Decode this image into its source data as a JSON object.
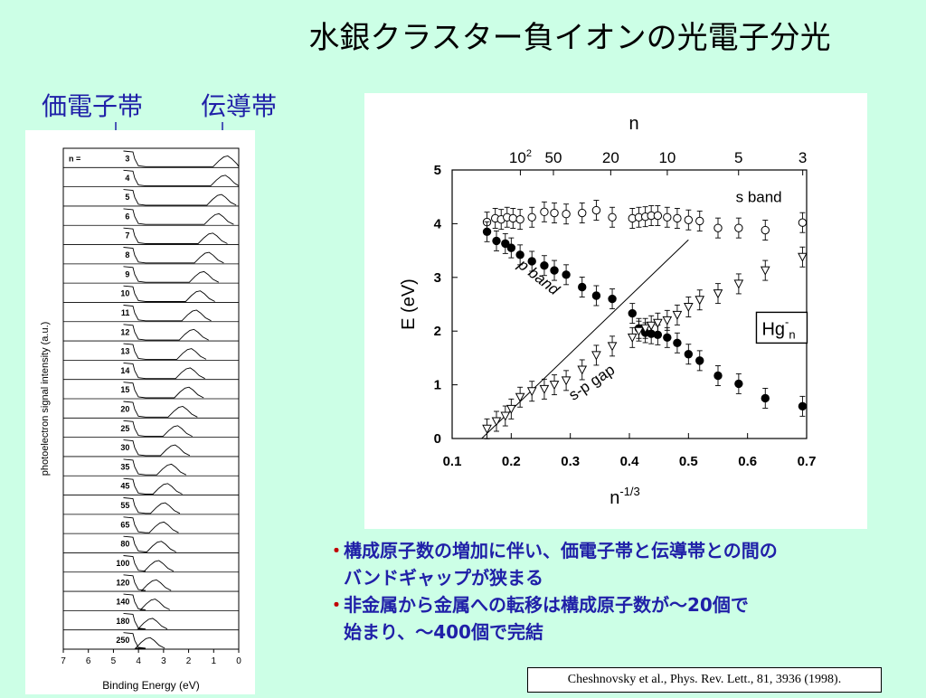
{
  "slide": {
    "title": "水銀クラスター負イオンの光電子分光",
    "label_valence": "価電子帯",
    "label_conduction": "伝導帯",
    "bullets": [
      {
        "lines": [
          "構成原子数の増加に伴い、価電子帯と伝導帯との間の",
          "バンドギャップが狭まる"
        ]
      },
      {
        "lines": [
          "非金属から金属への転移は構成原子数が～20個で",
          "始まり、～400個で完結"
        ]
      }
    ],
    "bullet_marker": "・",
    "reference": "Cheshnovsky et al., Phys. Rev. Lett., 81, 3936 (1998).",
    "colors": {
      "background": "#ccffe6",
      "title": "#000000",
      "bullet_text": "#2020a8",
      "bullet_marker": "#c00000"
    }
  },
  "chart_data": [
    {
      "type": "line",
      "xlabel": "Binding Energy (eV)",
      "ylabel": "photoelectron signal intensity (a.u.)",
      "x_ticks": [
        "7",
        "6",
        "5",
        "4",
        "3",
        "2",
        "1",
        "0"
      ],
      "xlim": [
        7,
        0
      ],
      "row_prefix": "n =",
      "rows": [
        {
          "n": "3",
          "peak_eV": 0.5
        },
        {
          "n": "4",
          "peak_eV": 0.6
        },
        {
          "n": "5",
          "peak_eV": 0.75
        },
        {
          "n": "6",
          "peak_eV": 0.85
        },
        {
          "n": "7",
          "peak_eV": 1.1
        },
        {
          "n": "8",
          "peak_eV": 1.25
        },
        {
          "n": "9",
          "peak_eV": 1.45
        },
        {
          "n": "10",
          "peak_eV": 1.6
        },
        {
          "n": "11",
          "peak_eV": 1.75
        },
        {
          "n": "12",
          "peak_eV": 1.85
        },
        {
          "n": "13",
          "peak_eV": 1.95
        },
        {
          "n": "14",
          "peak_eV": 2.0
        },
        {
          "n": "15",
          "peak_eV": 2.05
        },
        {
          "n": "20",
          "peak_eV": 2.3
        },
        {
          "n": "25",
          "peak_eV": 2.5
        },
        {
          "n": "30",
          "peak_eV": 2.6
        },
        {
          "n": "35",
          "peak_eV": 2.75
        },
        {
          "n": "45",
          "peak_eV": 2.9
        },
        {
          "n": "55",
          "peak_eV": 3.0
        },
        {
          "n": "65",
          "peak_eV": 3.05
        },
        {
          "n": "80",
          "peak_eV": 3.15
        },
        {
          "n": "100",
          "peak_eV": 3.25
        },
        {
          "n": "120",
          "peak_eV": 3.35
        },
        {
          "n": "140",
          "peak_eV": 3.4
        },
        {
          "n": "180",
          "peak_eV": 3.5
        },
        {
          "n": "250",
          "peak_eV": 3.6
        }
      ]
    },
    {
      "type": "scatter",
      "xlabel": "n",
      "xlabel_superscript": "-1/3",
      "ylabel": "E (eV)",
      "top_axis_label": "n",
      "legend_label": "Hg",
      "legend_sup": "-",
      "legend_sub": "n",
      "legend_position": "right",
      "xlim": [
        0.1,
        0.7
      ],
      "ylim": [
        0,
        5
      ],
      "x_ticks": [
        0.1,
        0.2,
        0.3,
        0.4,
        0.5,
        0.6,
        0.7
      ],
      "x_tick_labels": [
        "0.1",
        "0.2",
        "0.3",
        "0.4",
        "0.5",
        "0.6",
        "0.7"
      ],
      "y_ticks": [
        0,
        1,
        2,
        3,
        4,
        5
      ],
      "y_tick_labels": [
        "0",
        "1",
        "2",
        "3",
        "4",
        "5"
      ],
      "top_ticks": [
        {
          "label": "10",
          "sup": "2",
          "n": 100
        },
        {
          "label": "50",
          "sup": "",
          "n": 50
        },
        {
          "label": "20",
          "sup": "",
          "n": 20
        },
        {
          "label": "10",
          "sup": "",
          "n": 10
        },
        {
          "label": "5",
          "sup": "",
          "n": 5
        },
        {
          "label": "3",
          "sup": "",
          "n": 3
        }
      ],
      "annotations": [
        "s band",
        "p band",
        "s-p gap"
      ],
      "series": [
        {
          "marker": "open-circle",
          "x": [
            0.159,
            0.173,
            0.183,
            0.193,
            0.203,
            0.215,
            0.235,
            0.256,
            0.273,
            0.293,
            0.32,
            0.344,
            0.371,
            0.405,
            0.416,
            0.427,
            0.437,
            0.448,
            0.464,
            0.481,
            0.5,
            0.519,
            0.55,
            0.585,
            0.63,
            0.693
          ],
          "y": [
            4.03,
            4.1,
            4.08,
            4.12,
            4.1,
            4.08,
            4.12,
            4.22,
            4.2,
            4.18,
            4.2,
            4.25,
            4.12,
            4.1,
            4.12,
            4.13,
            4.15,
            4.15,
            4.12,
            4.1,
            4.07,
            4.05,
            3.92,
            3.92,
            3.88,
            4.02
          ]
        },
        {
          "marker": "filled-circle",
          "x": [
            0.159,
            0.175,
            0.19,
            0.2,
            0.215,
            0.235,
            0.256,
            0.273,
            0.293,
            0.32,
            0.344,
            0.371,
            0.405,
            0.416,
            0.427,
            0.437,
            0.448,
            0.464,
            0.481,
            0.5,
            0.519,
            0.55,
            0.585,
            0.63,
            0.693
          ],
          "y": [
            3.85,
            3.68,
            3.63,
            3.55,
            3.42,
            3.3,
            3.22,
            3.13,
            3.05,
            2.82,
            2.66,
            2.6,
            2.33,
            2.05,
            1.97,
            1.95,
            1.93,
            1.88,
            1.78,
            1.57,
            1.45,
            1.17,
            1.02,
            0.75,
            0.6
          ]
        },
        {
          "marker": "open-triangle",
          "x": [
            0.159,
            0.175,
            0.19,
            0.2,
            0.215,
            0.235,
            0.256,
            0.273,
            0.293,
            0.32,
            0.344,
            0.371,
            0.405,
            0.416,
            0.427,
            0.437,
            0.448,
            0.464,
            0.481,
            0.5,
            0.519,
            0.55,
            0.585,
            0.63,
            0.693
          ],
          "y": [
            0.18,
            0.32,
            0.42,
            0.55,
            0.77,
            0.88,
            0.92,
            1.0,
            1.08,
            1.28,
            1.55,
            1.72,
            1.88,
            2.0,
            2.05,
            2.1,
            2.15,
            2.2,
            2.3,
            2.45,
            2.58,
            2.7,
            2.88,
            3.13,
            3.38
          ]
        }
      ],
      "fit_line": {
        "x": [
          0.15,
          0.5
        ],
        "y": [
          0.0,
          3.7
        ]
      }
    }
  ]
}
